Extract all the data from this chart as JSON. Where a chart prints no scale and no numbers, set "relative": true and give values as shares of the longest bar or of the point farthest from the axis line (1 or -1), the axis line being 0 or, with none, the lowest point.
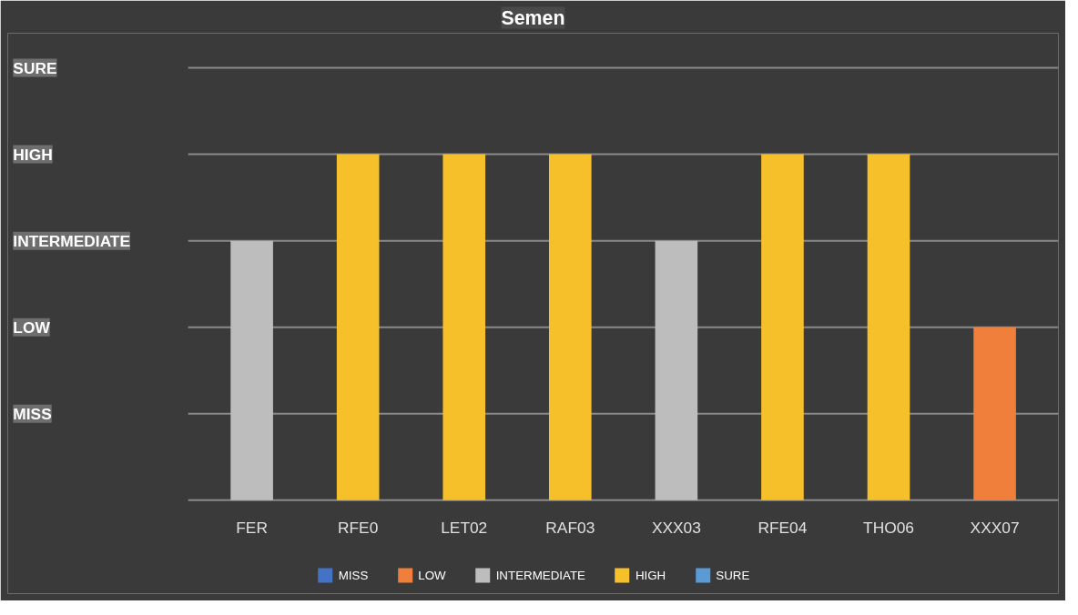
{
  "chart_data": {
    "type": "bar",
    "title": "Semen",
    "categories": [
      "FER",
      "RFE0",
      "LET02",
      "RAF03",
      "XXX03",
      "RFE04",
      "THO06",
      "XXX07"
    ],
    "relative": true,
    "series": [
      {
        "name": "MISS",
        "color": "#4472c4",
        "values": [
          null,
          null,
          null,
          null,
          null,
          null,
          null,
          null
        ]
      },
      {
        "name": "LOW",
        "color": "#f07f3c",
        "values": [
          null,
          null,
          null,
          null,
          null,
          null,
          null,
          0.5
        ]
      },
      {
        "name": "INTERMEDIATE",
        "color": "#bdbdbd",
        "values": [
          0.75,
          null,
          null,
          null,
          0.75,
          null,
          null,
          null
        ]
      },
      {
        "name": "HIGH",
        "color": "#f5c02a",
        "values": [
          null,
          1,
          1,
          1,
          null,
          1,
          1,
          null
        ]
      },
      {
        "name": "SURE",
        "color": "#5b9bd5",
        "values": [
          null,
          null,
          null,
          null,
          null,
          null,
          null,
          null
        ]
      }
    ],
    "annotations": [
      "MISS",
      "LOW",
      "INTERMEDIATE",
      "HIGH",
      "SURE"
    ],
    "grid": "y",
    "legend": "bottom"
  }
}
